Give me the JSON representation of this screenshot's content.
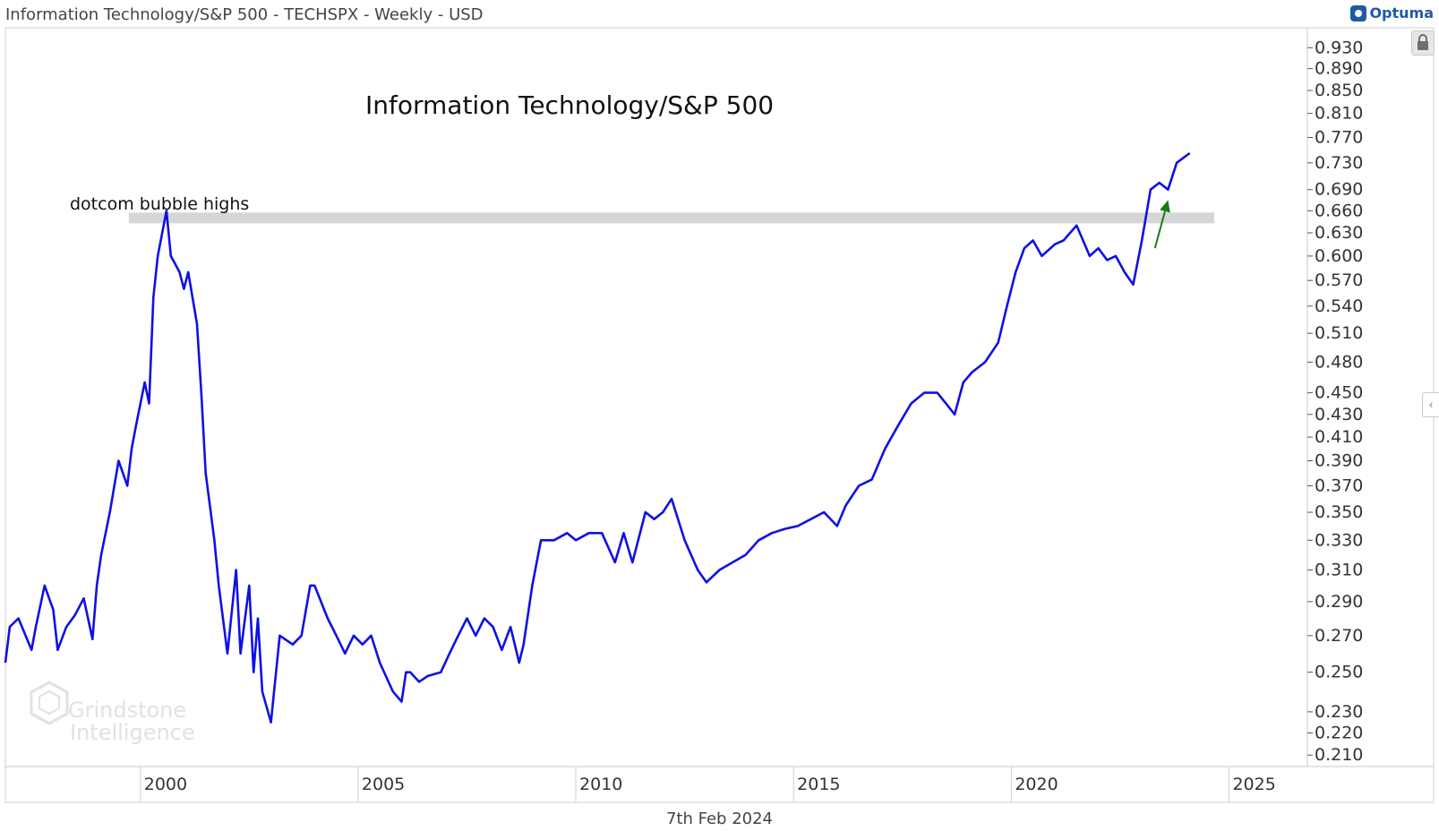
{
  "header": {
    "title": "Information Technology/S&P 500 - TECHSPX - Weekly - USD",
    "brand": "Optuma"
  },
  "footer": {
    "date": "7th Feb 2024"
  },
  "watermark": {
    "line1": "Grindstone",
    "line2": "Intelligence"
  },
  "chart_data": {
    "type": "line",
    "title": "Information Technology/S&P 500",
    "xlabel": "",
    "ylabel": "",
    "y_scale": "log",
    "ylim": [
      0.205,
      0.95
    ],
    "xlim": [
      1996.9,
      2026.8
    ],
    "legend": "none",
    "grid": false,
    "x_ticks": [
      2000,
      2005,
      2010,
      2015,
      2020,
      2025
    ],
    "y_ticks": [
      "0.930",
      "0.890",
      "0.850",
      "0.810",
      "0.770",
      "0.730",
      "0.690",
      "0.660",
      "0.630",
      "0.600",
      "0.570",
      "0.540",
      "0.510",
      "0.480",
      "0.450",
      "0.430",
      "0.410",
      "0.390",
      "0.370",
      "0.350",
      "0.330",
      "0.310",
      "0.290",
      "0.270",
      "0.250",
      "0.230",
      "0.220",
      "0.210"
    ],
    "series": [
      {
        "name": "TECHSPX",
        "color": "#1010e6",
        "x": [
          1996.9,
          1997.0,
          1997.2,
          1997.5,
          1997.6,
          1997.8,
          1998.0,
          1998.1,
          1998.3,
          1998.5,
          1998.7,
          1998.9,
          1999.0,
          1999.1,
          1999.3,
          1999.5,
          1999.6,
          1999.7,
          1999.8,
          1999.9,
          2000.1,
          2000.2,
          2000.3,
          2000.4,
          2000.6,
          2000.7,
          2000.9,
          2001.0,
          2001.1,
          2001.3,
          2001.4,
          2001.5,
          2001.7,
          2001.8,
          2002.0,
          2002.2,
          2002.3,
          2002.5,
          2002.6,
          2002.7,
          2002.8,
          2003.0,
          2003.2,
          2003.5,
          2003.7,
          2003.9,
          2004.0,
          2004.3,
          2004.5,
          2004.7,
          2004.9,
          2005.1,
          2005.3,
          2005.5,
          2005.8,
          2006.0,
          2006.1,
          2006.2,
          2006.4,
          2006.6,
          2006.9,
          2007.1,
          2007.3,
          2007.5,
          2007.7,
          2007.9,
          2008.1,
          2008.3,
          2008.5,
          2008.7,
          2008.8,
          2009.0,
          2009.2,
          2009.5,
          2009.8,
          2010.0,
          2010.3,
          2010.6,
          2010.9,
          2011.1,
          2011.3,
          2011.6,
          2011.8,
          2012.0,
          2012.2,
          2012.5,
          2012.8,
          2013.0,
          2013.3,
          2013.6,
          2013.9,
          2014.2,
          2014.5,
          2014.8,
          2015.1,
          2015.4,
          2015.7,
          2016.0,
          2016.2,
          2016.5,
          2016.8,
          2017.1,
          2017.4,
          2017.7,
          2018.0,
          2018.3,
          2018.5,
          2018.7,
          2018.9,
          2019.1,
          2019.4,
          2019.7,
          2019.9,
          2020.1,
          2020.3,
          2020.5,
          2020.7,
          2021.0,
          2021.2,
          2021.5,
          2021.8,
          2022.0,
          2022.2,
          2022.4,
          2022.6,
          2022.8,
          2023.0,
          2023.2,
          2023.4,
          2023.6,
          2023.8,
          2024.0,
          2024.1
        ],
        "values": [
          0.255,
          0.275,
          0.28,
          0.262,
          0.275,
          0.3,
          0.285,
          0.262,
          0.275,
          0.282,
          0.292,
          0.268,
          0.3,
          0.32,
          0.35,
          0.39,
          0.38,
          0.37,
          0.4,
          0.42,
          0.46,
          0.44,
          0.55,
          0.6,
          0.66,
          0.6,
          0.58,
          0.56,
          0.58,
          0.52,
          0.45,
          0.38,
          0.33,
          0.3,
          0.26,
          0.31,
          0.26,
          0.3,
          0.25,
          0.28,
          0.24,
          0.225,
          0.27,
          0.265,
          0.27,
          0.3,
          0.3,
          0.28,
          0.27,
          0.26,
          0.27,
          0.265,
          0.27,
          0.255,
          0.24,
          0.235,
          0.25,
          0.25,
          0.245,
          0.248,
          0.25,
          0.26,
          0.27,
          0.28,
          0.27,
          0.28,
          0.275,
          0.262,
          0.275,
          0.255,
          0.265,
          0.3,
          0.33,
          0.33,
          0.335,
          0.33,
          0.335,
          0.335,
          0.315,
          0.335,
          0.315,
          0.35,
          0.345,
          0.35,
          0.36,
          0.33,
          0.31,
          0.302,
          0.31,
          0.315,
          0.32,
          0.33,
          0.335,
          0.338,
          0.34,
          0.345,
          0.35,
          0.34,
          0.355,
          0.37,
          0.375,
          0.4,
          0.42,
          0.44,
          0.45,
          0.45,
          0.44,
          0.43,
          0.46,
          0.47,
          0.48,
          0.5,
          0.54,
          0.58,
          0.61,
          0.62,
          0.6,
          0.615,
          0.62,
          0.64,
          0.6,
          0.61,
          0.595,
          0.6,
          0.58,
          0.565,
          0.62,
          0.69,
          0.7,
          0.69,
          0.73,
          0.74,
          0.745
        ]
      }
    ],
    "annotations": [
      {
        "text": "dotcom bubble highs",
        "band_value": 0.65
      },
      {
        "text": "up-arrow",
        "from": [
          2023.3,
          0.61
        ],
        "to": [
          2023.6,
          0.675
        ],
        "color": "#1a7a1a"
      }
    ]
  }
}
